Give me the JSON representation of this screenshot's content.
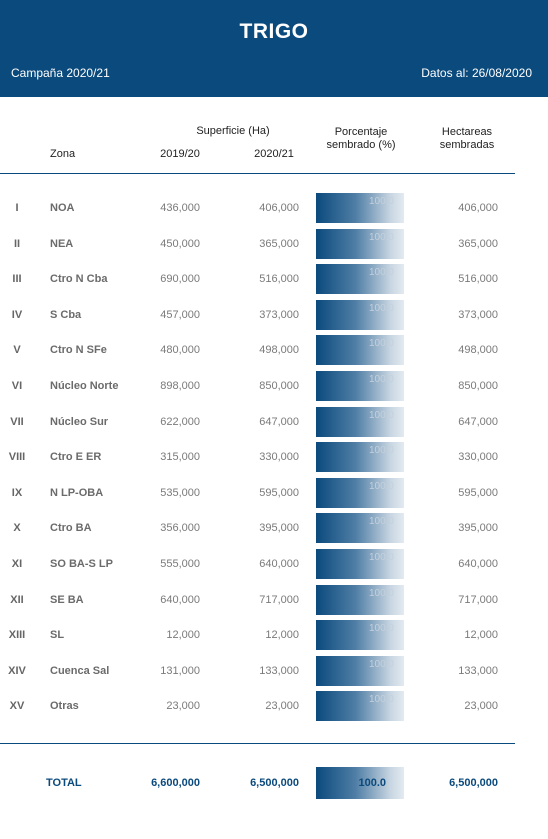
{
  "header": {
    "title": "TRIGO",
    "campaign": "Campaña 2020/21",
    "date": "Datos al: 26/08/2020"
  },
  "columns": {
    "superficie": "Superficie (Ha)",
    "zona": "Zona",
    "y2019": "2019/20",
    "y2020": "2020/21",
    "porcentaje_1": "Porcentaje",
    "porcentaje_2": "sembrado (%)",
    "hectareas_1": "Hectareas",
    "hectareas_2": "sembradas"
  },
  "rows": [
    {
      "num": "I",
      "zone": "NOA",
      "a": "436,000",
      "b": "406,000",
      "pct": "100.0",
      "d": "406,000"
    },
    {
      "num": "II",
      "zone": "NEA",
      "a": "450,000",
      "b": "365,000",
      "pct": "100.0",
      "d": "365,000"
    },
    {
      "num": "III",
      "zone": "Ctro N Cba",
      "a": "690,000",
      "b": "516,000",
      "pct": "100.0",
      "d": "516,000"
    },
    {
      "num": "IV",
      "zone": "S Cba",
      "a": "457,000",
      "b": "373,000",
      "pct": "100.0",
      "d": "373,000"
    },
    {
      "num": "V",
      "zone": "Ctro N SFe",
      "a": "480,000",
      "b": "498,000",
      "pct": "100.0",
      "d": "498,000"
    },
    {
      "num": "VI",
      "zone": "Núcleo Norte",
      "a": "898,000",
      "b": "850,000",
      "pct": "100.0",
      "d": "850,000"
    },
    {
      "num": "VII",
      "zone": "Núcleo Sur",
      "a": "622,000",
      "b": "647,000",
      "pct": "100.0",
      "d": "647,000"
    },
    {
      "num": "VIII",
      "zone": "Ctro E ER",
      "a": "315,000",
      "b": "330,000",
      "pct": "100.0",
      "d": "330,000"
    },
    {
      "num": "IX",
      "zone": "N LP-OBA",
      "a": "535,000",
      "b": "595,000",
      "pct": "100.0",
      "d": "595,000"
    },
    {
      "num": "X",
      "zone": "Ctro BA",
      "a": "356,000",
      "b": "395,000",
      "pct": "100.0",
      "d": "395,000"
    },
    {
      "num": "XI",
      "zone": "SO BA-S LP",
      "a": "555,000",
      "b": "640,000",
      "pct": "100.0",
      "d": "640,000"
    },
    {
      "num": "XII",
      "zone": "SE BA",
      "a": "640,000",
      "b": "717,000",
      "pct": "100.0",
      "d": "717,000"
    },
    {
      "num": "XIII",
      "zone": "SL",
      "a": "12,000",
      "b": "12,000",
      "pct": "100.0",
      "d": "12,000"
    },
    {
      "num": "XIV",
      "zone": "Cuenca Sal",
      "a": "131,000",
      "b": "133,000",
      "pct": "100.0",
      "d": "133,000"
    },
    {
      "num": "XV",
      "zone": "Otras",
      "a": "23,000",
      "b": "23,000",
      "pct": "100.0",
      "d": "23,000"
    }
  ],
  "total": {
    "label": "TOTAL",
    "a": "6,600,000",
    "b": "6,500,000",
    "pct": "100.0",
    "d": "6,500,000"
  },
  "colors": {
    "primary": "#0b4a7d"
  }
}
